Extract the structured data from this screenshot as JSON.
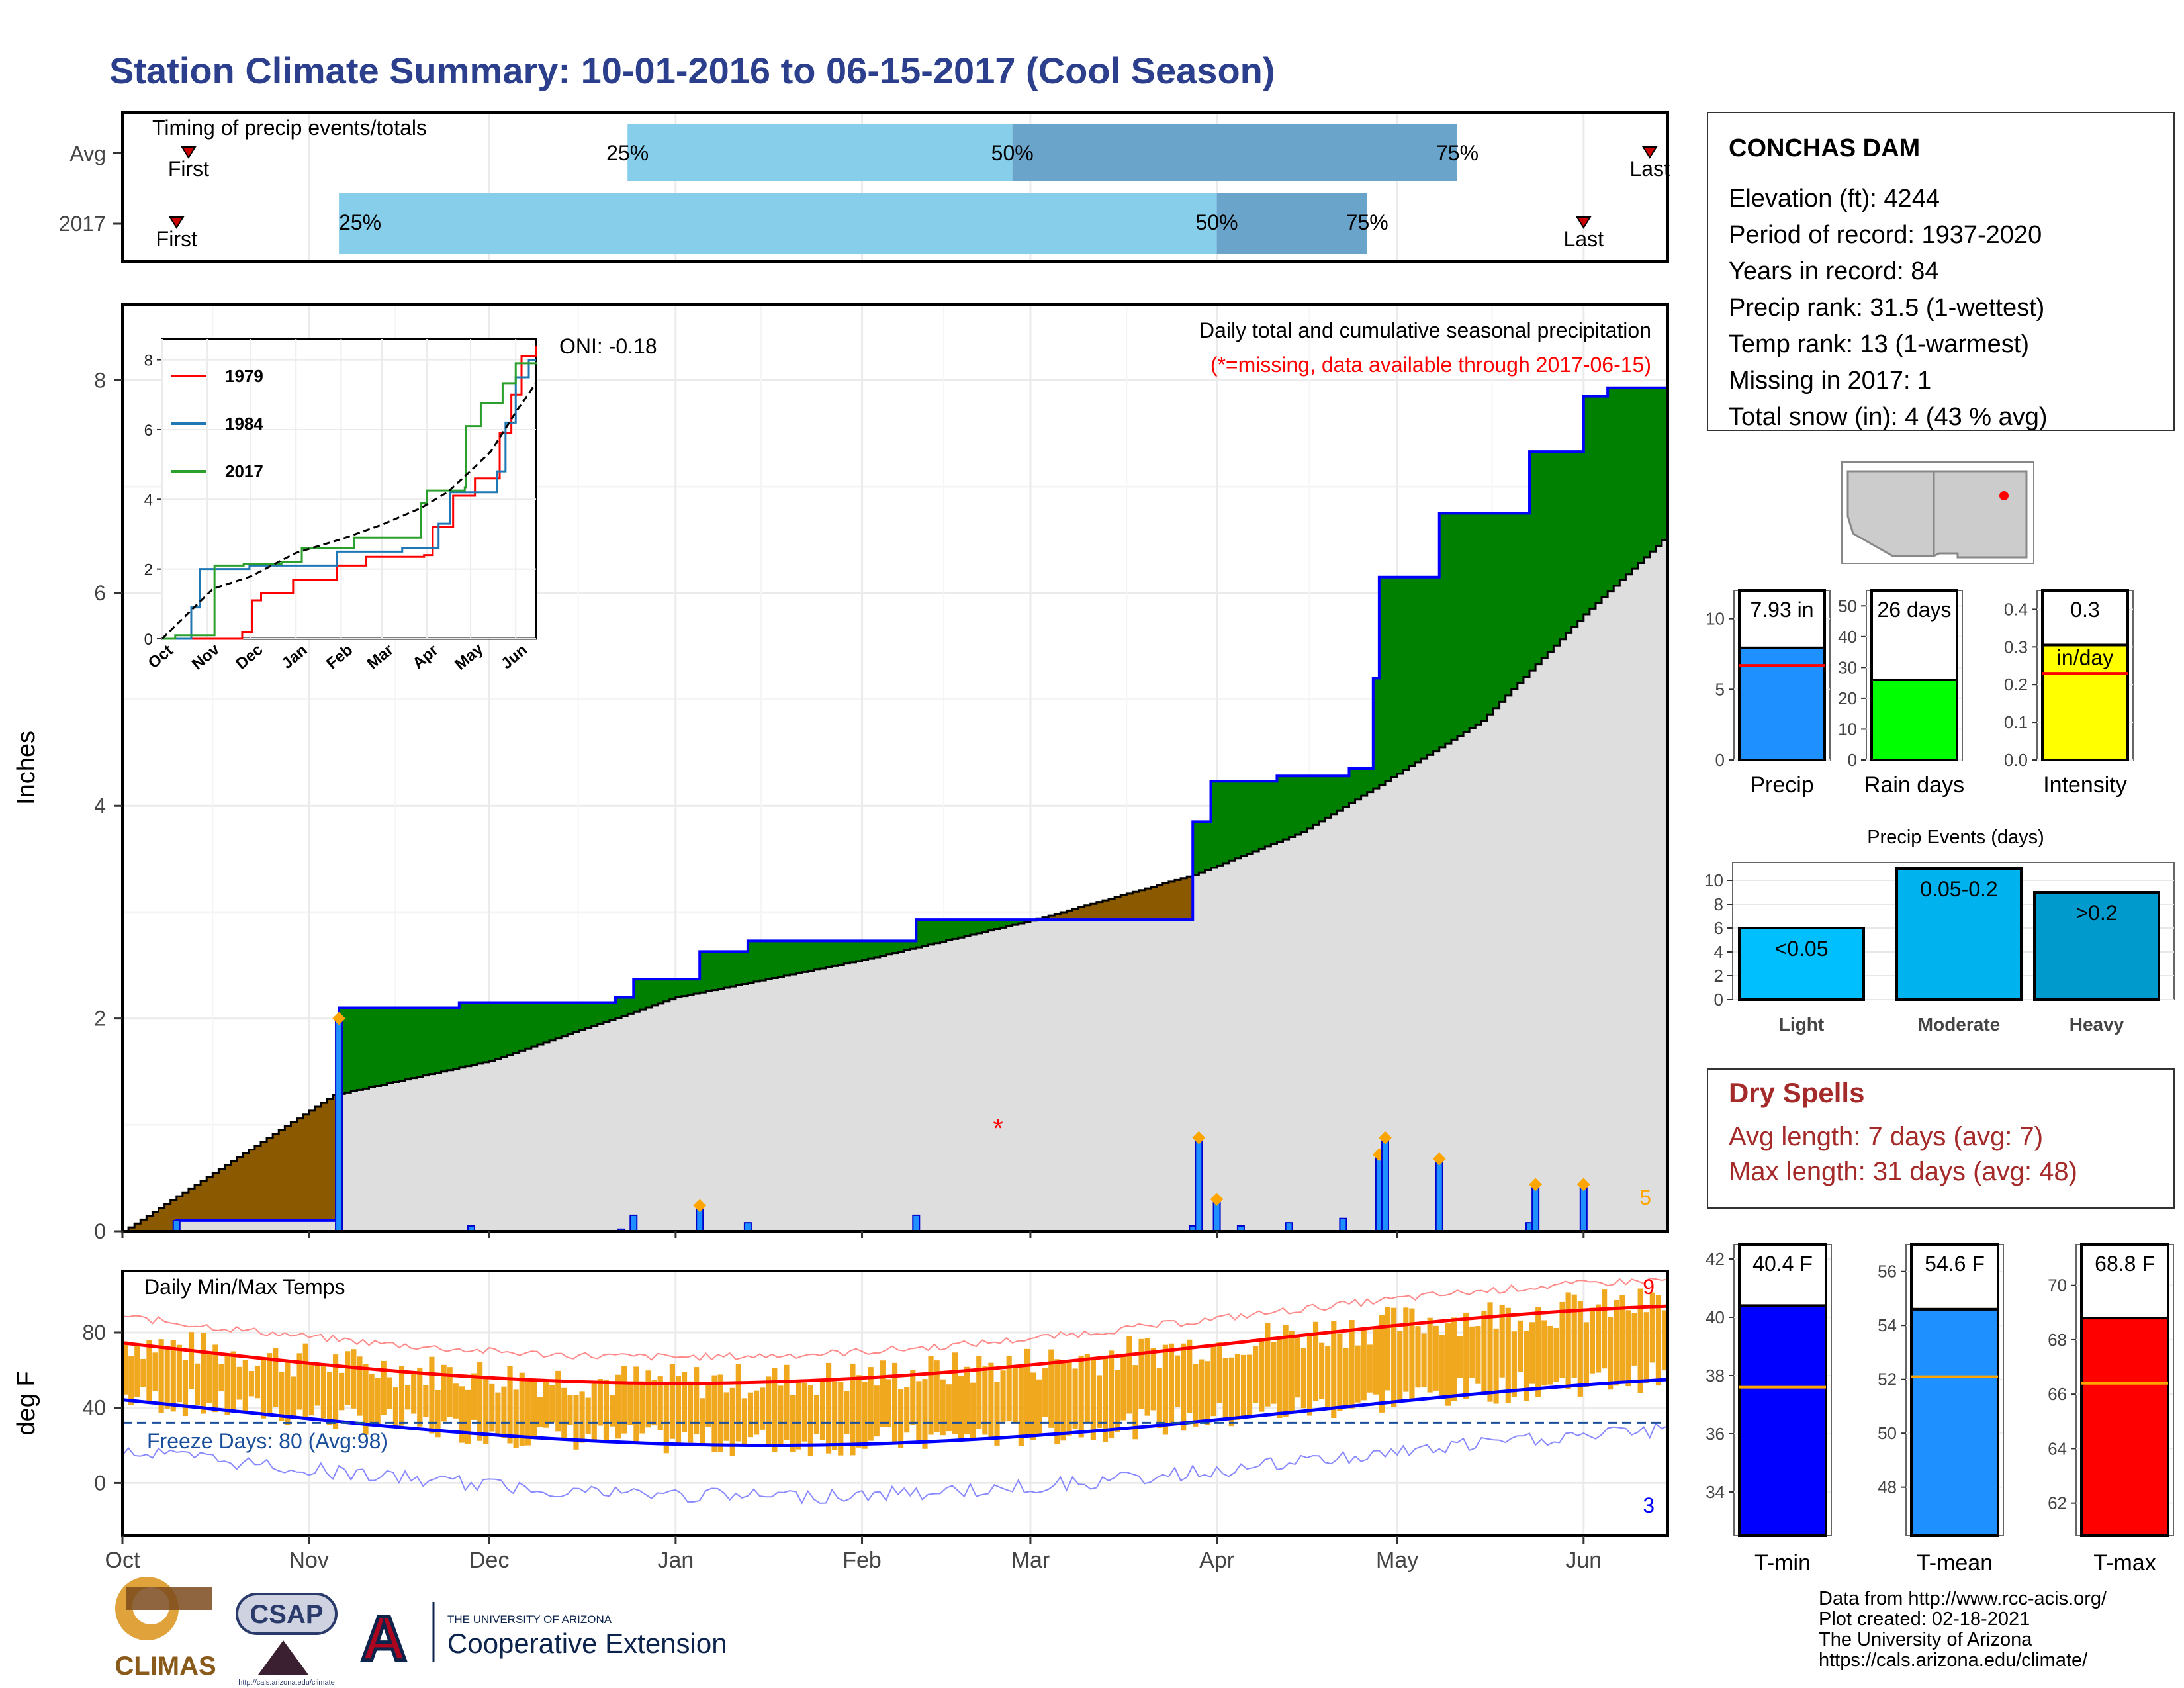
{
  "title": "Station Climate Summary: 10-01-2016 to 06-15-2017 (Cool Season)",
  "colors": {
    "title": "#2b3f8c",
    "q1": "#87ceeb",
    "q2": "#6ba4cb",
    "surplus": "#008000",
    "deficit": "#8b5a00",
    "avgfill": "#dedede",
    "cum": "#0000ff",
    "tmaxline": "#ff0000",
    "tminline": "#0000ff",
    "bars": "#f0a81f",
    "freeze": "#1a4f9c",
    "drytext": "#a52a2a",
    "precipbar": "#1e90ff",
    "raindaysbar": "#00ff00",
    "intensitybar": "#ffff00",
    "eventsbar": "#00b2ee",
    "tminbar": "#0000ff",
    "tmeanbar": "#1e90ff",
    "tmaxbar": "#ff0000"
  },
  "timing": {
    "title": "Timing of precip events/totals",
    "rows": [
      "Avg",
      "2017"
    ],
    "first_label": "First",
    "last_label": "Last",
    "avg": {
      "first": "Oct 12",
      "q25": "Dec 24",
      "q50": "Feb 26",
      "q75": "May 11",
      "last": "Jun 12"
    },
    "y2017": {
      "first": "Oct 10",
      "q25": "Nov 6",
      "q50": "Apr 1",
      "q75": "Apr 26",
      "last": "Jun 1"
    },
    "pct": [
      "25%",
      "50%",
      "75%"
    ]
  },
  "precip_panel": {
    "title": "Daily total and cumulative seasonal precipitation",
    "subtitle": "(*=missing, data available through 2017-06-15)",
    "oni": "ONI: -0.18",
    "ylabel": "Inches",
    "yticks": [
      "0",
      "2",
      "4",
      "6",
      "8"
    ],
    "count_label": "5"
  },
  "inset": {
    "legend": [
      "1979",
      "1984",
      "2017"
    ],
    "yticks": [
      "0",
      "2",
      "4",
      "6",
      "8"
    ],
    "xticks": [
      "Oct",
      "Nov",
      "Dec",
      "Jan",
      "Feb",
      "Mar",
      "Apr",
      "May",
      "Jun"
    ]
  },
  "temp_panel": {
    "title": "Daily Min/Max Temps",
    "ylabel": "deg F",
    "yticks": [
      "0",
      "40",
      "80"
    ],
    "freeze_text": "Freeze Days: 80 (Avg:98)",
    "count_max": "9",
    "count_min": "3"
  },
  "xaxis": {
    "months": [
      "Oct",
      "Nov",
      "Dec",
      "Jan",
      "Feb",
      "Mar",
      "Apr",
      "May",
      "Jun"
    ]
  },
  "station": {
    "name": "CONCHAS DAM",
    "lines": [
      "Elevation (ft): 4244",
      "Period of record: 1937-2020",
      "Years in record: 84",
      "Precip rank: 31.5 (1-wettest)",
      "Temp rank: 13 (1-warmest)",
      "Missing in 2017: 1",
      "Total snow (in): 4 (43 % avg)"
    ]
  },
  "mini_bars": [
    {
      "label": "Precip",
      "value_label": "7.93 in",
      "value": 7.93,
      "avg": 6.7,
      "yticks": [
        "0",
        "5",
        "10"
      ],
      "ymax": 12
    },
    {
      "label": "Rain days",
      "value_label": "26 days",
      "value": 26,
      "avg": 29,
      "yticks": [
        "0",
        "10",
        "20",
        "30",
        "40",
        "50"
      ],
      "ymax": 55
    },
    {
      "label": "Intensity",
      "value_label": "0.3",
      "unit_label": "in/day",
      "value": 0.305,
      "avg": 0.23,
      "yticks": [
        "0.0",
        "0.1",
        "0.2",
        "0.3",
        "0.4"
      ],
      "ymax": 0.45
    }
  ],
  "events": {
    "title": "Precip Events (days)",
    "yticks": [
      "0",
      "2",
      "4",
      "6",
      "8",
      "10"
    ],
    "bars": [
      {
        "category": "Light",
        "label": "<0.05",
        "value": 6
      },
      {
        "category": "Moderate",
        "label": "0.05-0.2",
        "value": 11
      },
      {
        "category": "Heavy",
        "label": ">0.2",
        "value": 9
      }
    ]
  },
  "dry_spells": {
    "title": "Dry Spells",
    "avg": "Avg length: 7 days (avg: 7)",
    "max": "Max length: 31 days (avg: 48)"
  },
  "temp_bars": [
    {
      "label": "T-min",
      "value_label": "40.4 F",
      "value": 40.4,
      "avg": 37.6,
      "yticks": [
        "34",
        "36",
        "38",
        "40",
        "42"
      ],
      "ymin": 32.5,
      "ymax": 42.5
    },
    {
      "label": "T-mean",
      "value_label": "54.6 F",
      "value": 54.6,
      "avg": 52.1,
      "yticks": [
        "48",
        "50",
        "52",
        "54",
        "56"
      ],
      "ymin": 46.2,
      "ymax": 57
    },
    {
      "label": "T-max",
      "value_label": "68.8 F",
      "value": 68.8,
      "avg": 66.4,
      "yticks": [
        "62",
        "64",
        "66",
        "68",
        "70"
      ],
      "ymin": 60.8,
      "ymax": 71.5
    }
  ],
  "footer": {
    "lines": [
      "Data from http://www.rcc-acis.org/",
      "Plot created: 02-18-2021",
      "The University of Arizona",
      "https://cals.arizona.edu/climate/"
    ],
    "climas": "CLIMAS",
    "csap": "CSAP",
    "csap_url": "http://cals.arizona.edu/climate",
    "ua_small": "THE UNIVERSITY OF ARIZONA",
    "ua_big": "Cooperative Extension",
    "ua_letter": "A"
  },
  "chart_data": {
    "type": "area",
    "title": "Daily total and cumulative seasonal precipitation",
    "ylabel": "Inches",
    "ylim": [
      0,
      8.7
    ],
    "xlim": [
      "2016-10-01",
      "2017-06-15"
    ],
    "cumulative_2017_steps": [
      {
        "date": "2016-10-10",
        "value": 0.1
      },
      {
        "date": "2016-11-06",
        "value": 2.1
      },
      {
        "date": "2016-11-26",
        "value": 2.15
      },
      {
        "date": "2016-12-22",
        "value": 2.2
      },
      {
        "date": "2016-12-25",
        "value": 2.37
      },
      {
        "date": "2017-01-05",
        "value": 2.63
      },
      {
        "date": "2017-01-13",
        "value": 2.73
      },
      {
        "date": "2017-02-10",
        "value": 2.93
      },
      {
        "date": "2017-03-28",
        "value": 3.85
      },
      {
        "date": "2017-03-31",
        "value": 4.23
      },
      {
        "date": "2017-04-11",
        "value": 4.28
      },
      {
        "date": "2017-04-23",
        "value": 4.35
      },
      {
        "date": "2017-04-27",
        "value": 5.2
      },
      {
        "date": "2017-04-28",
        "value": 6.15
      },
      {
        "date": "2017-05-08",
        "value": 6.75
      },
      {
        "date": "2017-05-23",
        "value": 7.33
      },
      {
        "date": "2017-06-01",
        "value": 7.85
      },
      {
        "date": "2017-06-05",
        "value": 7.93
      }
    ],
    "average_cumulative": [
      {
        "date": "2016-10-01",
        "value": 0
      },
      {
        "date": "2016-11-05",
        "value": 1.28
      },
      {
        "date": "2016-12-01",
        "value": 1.6
      },
      {
        "date": "2017-01-01",
        "value": 2.2
      },
      {
        "date": "2017-02-01",
        "value": 2.55
      },
      {
        "date": "2017-03-01",
        "value": 2.92
      },
      {
        "date": "2017-03-28",
        "value": 3.35
      },
      {
        "date": "2017-04-15",
        "value": 3.75
      },
      {
        "date": "2017-05-01",
        "value": 4.3
      },
      {
        "date": "2017-05-15",
        "value": 4.8
      },
      {
        "date": "2017-06-01",
        "value": 5.8
      },
      {
        "date": "2017-06-15",
        "value": 6.55
      }
    ],
    "daily_bars": [
      {
        "date": "2016-10-10",
        "value": 0.1
      },
      {
        "date": "2016-11-06",
        "value": 2.0
      },
      {
        "date": "2016-11-28",
        "value": 0.05
      },
      {
        "date": "2016-12-23",
        "value": 0.02
      },
      {
        "date": "2016-12-25",
        "value": 0.15
      },
      {
        "date": "2017-01-05",
        "value": 0.24
      },
      {
        "date": "2017-01-13",
        "value": 0.08
      },
      {
        "date": "2017-02-10",
        "value": 0.15
      },
      {
        "date": "2017-03-28",
        "value": 0.05
      },
      {
        "date": "2017-03-29",
        "value": 0.88
      },
      {
        "date": "2017-04-01",
        "value": 0.3
      },
      {
        "date": "2017-04-05",
        "value": 0.05
      },
      {
        "date": "2017-04-13",
        "value": 0.08
      },
      {
        "date": "2017-04-22",
        "value": 0.12
      },
      {
        "date": "2017-04-28",
        "value": 0.72
      },
      {
        "date": "2017-04-29",
        "value": 0.88
      },
      {
        "date": "2017-05-08",
        "value": 0.68
      },
      {
        "date": "2017-05-23",
        "value": 0.08
      },
      {
        "date": "2017-05-24",
        "value": 0.44
      },
      {
        "date": "2017-06-01",
        "value": 0.44
      }
    ],
    "missing_day": {
      "date": "2017-02-24",
      "value": 1.0
    }
  }
}
